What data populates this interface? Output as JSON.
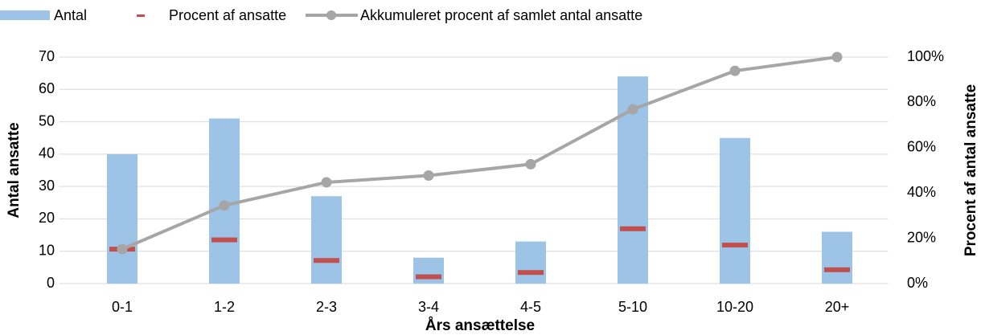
{
  "chart_data": {
    "type": "combo",
    "x_label": "Års ansættelse",
    "y_label": "Antal ansatte",
    "y2_label": "Procent af antal ansatte",
    "categories": [
      "0-1",
      "1-2",
      "2-3",
      "3-4",
      "4-5",
      "5-10",
      "10-20",
      "20+"
    ],
    "series": [
      {
        "name": "Antal",
        "type": "bar",
        "color": "#9dc3e6",
        "values": [
          40,
          51,
          27,
          8,
          13,
          64,
          45,
          16
        ]
      },
      {
        "name": "Procent af ansatte",
        "type": "dash",
        "axis": "y2",
        "color": "#c0504d",
        "values": [
          15.2,
          19.3,
          10.2,
          3.0,
          4.9,
          24.2,
          17.0,
          6.1
        ]
      },
      {
        "name": "Akkumuleret procent af samlet antal ansatte",
        "type": "line",
        "axis": "y2",
        "color": "#a6a6a6",
        "values": [
          15.2,
          34.5,
          44.7,
          47.7,
          52.7,
          76.9,
          93.9,
          100
        ]
      }
    ],
    "ylim": [
      0,
      70
    ],
    "yticks": [
      0,
      10,
      20,
      30,
      40,
      50,
      60,
      70
    ],
    "y2lim": [
      0,
      100
    ],
    "y2ticks": [
      {
        "value": 0,
        "label": "0%"
      },
      {
        "value": 20,
        "label": "20%"
      },
      {
        "value": 40,
        "label": "40%"
      },
      {
        "value": 60,
        "label": "60%"
      },
      {
        "value": 80,
        "label": "80%"
      },
      {
        "value": 100,
        "label": "100%"
      }
    ],
    "grid": true
  }
}
